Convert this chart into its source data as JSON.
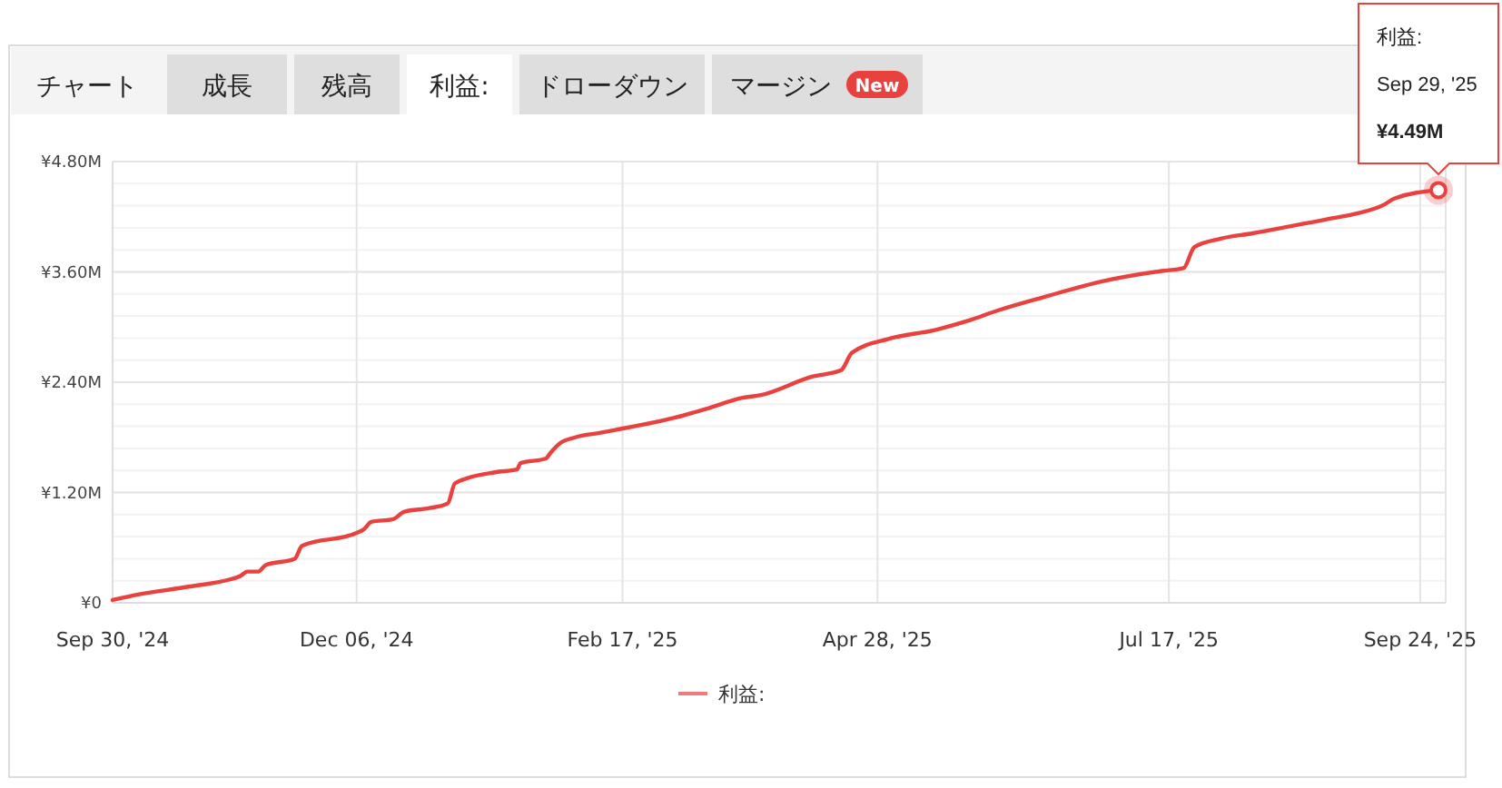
{
  "chart_data": {
    "type": "line",
    "annotations": [
      "チャート",
      "成長",
      "残高",
      "利益:",
      "ドローダウン",
      "マージン",
      "New",
      "利益:",
      "Sep 29, '25",
      {
        "text": "¥4.49M",
        "x": "2025-09-29",
        "y": 4.49
      }
    ],
    "x": [
      "2024-09-30",
      "2024-10-07",
      "2024-10-20",
      "2024-11-04",
      "2024-11-06",
      "2024-11-09",
      "2024-11-11",
      "2024-11-19",
      "2024-11-21",
      "2024-12-06",
      "2024-12-08",
      "2024-12-10",
      "2024-12-16",
      "2024-12-19",
      "2024-12-26",
      "2024-12-31",
      "2025-01-02",
      "2025-01-13",
      "2025-01-19",
      "2025-01-20",
      "2025-01-27",
      "2025-01-28",
      "2025-01-31",
      "2025-02-04",
      "2025-02-11",
      "2025-02-15",
      "2025-03-03",
      "2025-03-12",
      "2025-03-22",
      "2025-03-27",
      "2025-04-10",
      "2025-04-18",
      "2025-04-21",
      "2025-05-01",
      "2025-05-14",
      "2025-05-23",
      "2025-05-31",
      "2025-06-13",
      "2025-06-29",
      "2025-07-15",
      "2025-07-21",
      "2025-07-24",
      "2025-07-31",
      "2025-08-09",
      "2025-08-29",
      "2025-09-06",
      "2025-09-14",
      "2025-09-17",
      "2025-09-29"
    ],
    "series": [
      {
        "name": "利益:",
        "color": "#e8413e",
        "values": [
          0.03,
          0.09,
          0.17,
          0.29,
          0.34,
          0.34,
          0.41,
          0.48,
          0.62,
          0.76,
          0.8,
          0.88,
          0.91,
          0.99,
          1.03,
          1.08,
          1.3,
          1.42,
          1.45,
          1.52,
          1.57,
          1.62,
          1.74,
          1.8,
          1.85,
          1.88,
          2.01,
          2.11,
          2.23,
          2.26,
          2.46,
          2.53,
          2.72,
          2.87,
          2.97,
          3.07,
          3.18,
          3.33,
          3.5,
          3.61,
          3.64,
          3.87,
          3.96,
          4.02,
          4.17,
          4.23,
          4.33,
          4.4,
          4.49
        ]
      }
    ],
    "xlim": [
      "2024-09-30",
      "2025-10-01"
    ],
    "xticks": [
      {
        "value": "2024-09-30",
        "label": "Sep 30, '24"
      },
      {
        "value": "2024-12-06",
        "label": "Dec 06, '24"
      },
      {
        "value": "2025-02-17",
        "label": "Feb 17, '25"
      },
      {
        "value": "2025-04-28",
        "label": "Apr 28, '25"
      },
      {
        "value": "2025-07-17",
        "label": "Jul 17, '25"
      },
      {
        "value": "2025-09-24",
        "label": "Sep 24, '25"
      }
    ],
    "ylim": [
      0,
      4.8
    ],
    "yticks": [
      {
        "value": 0,
        "label": "¥0"
      },
      {
        "value": 1.2,
        "label": "¥1.20M"
      },
      {
        "value": 2.4,
        "label": "¥2.40M"
      },
      {
        "value": 3.6,
        "label": "¥3.60M"
      },
      {
        "value": 4.8,
        "label": "¥4.80M"
      }
    ],
    "grid": true,
    "legend": "bottom",
    "marker": "none",
    "line_style": "solid"
  }
}
